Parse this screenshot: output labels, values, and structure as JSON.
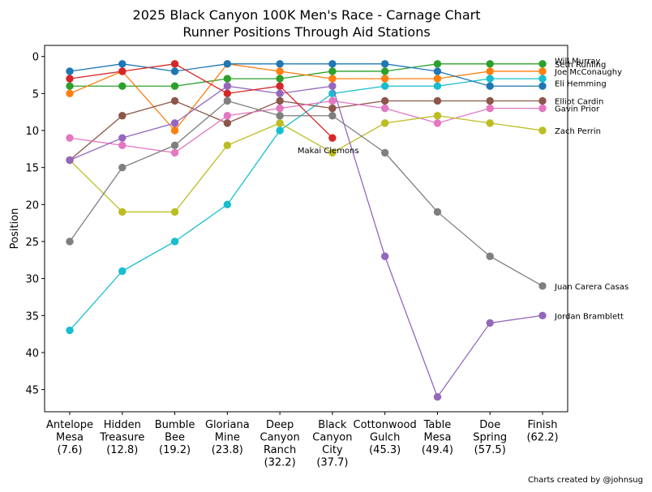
{
  "chart_data": {
    "type": "line",
    "title": "2025 Black Canyon 100K Men's Race - Carnage Chart",
    "subtitle": "Runner Positions Through Aid Stations",
    "xlabel": "",
    "ylabel": "Position",
    "ylim": [
      48,
      -1.5
    ],
    "yticks": [
      0,
      5,
      10,
      15,
      20,
      25,
      30,
      35,
      40,
      45
    ],
    "categories": [
      "Antelope Mesa (7.6)",
      "Hidden Treasure (12.8)",
      "Bumble Bee (19.2)",
      "Gloriana Mine (23.8)",
      "Deep Canyon Ranch (32.2)",
      "Black Canyon City (37.7)",
      "Cottonwood Gulch (45.3)",
      "Table Mesa (49.4)",
      "Doe Spring (57.5)",
      "Finish (62.2)"
    ],
    "category_lines": [
      [
        "Antelope",
        "Mesa",
        "(7.6)"
      ],
      [
        "Hidden",
        "Treasure",
        "(12.8)"
      ],
      [
        "Bumble",
        "Bee",
        "(19.2)"
      ],
      [
        "Gloriana",
        "Mine",
        "(23.8)"
      ],
      [
        "Deep",
        "Canyon",
        "Ranch",
        "(32.2)"
      ],
      [
        "Black",
        "Canyon",
        "City",
        "(37.7)"
      ],
      [
        "Cottonwood",
        "Gulch",
        "(45.3)"
      ],
      [
        "Table",
        "Mesa",
        "(49.4)"
      ],
      [
        "Doe",
        "Spring",
        "(57.5)"
      ],
      [
        "Finish",
        "(62.2)"
      ]
    ],
    "series": [
      {
        "name": "Seth Ruhling",
        "color": "#2ca02c",
        "values": [
          4,
          4,
          4,
          3,
          3,
          2,
          2,
          1,
          1,
          1
        ]
      },
      {
        "name": "Will Murray",
        "color": "#ff7f0e",
        "values": [
          5,
          2,
          10,
          1,
          2,
          3,
          3,
          3,
          2,
          2
        ]
      },
      {
        "name": "Joe McConaughy",
        "color": "#17becf",
        "values": [
          37,
          29,
          25,
          20,
          10,
          5,
          4,
          4,
          3,
          3
        ]
      },
      {
        "name": "Eli Hemming",
        "color": "#1f77b4",
        "values": [
          2,
          1,
          2,
          1,
          1,
          1,
          1,
          2,
          4,
          4
        ]
      },
      {
        "name": "Elliot Cardin",
        "color": "#8c564b",
        "values": [
          14,
          8,
          6,
          9,
          6,
          7,
          6,
          6,
          6,
          6
        ]
      },
      {
        "name": "Gavin Prior",
        "color": "#e377c2",
        "values": [
          11,
          12,
          13,
          8,
          7,
          6,
          7,
          9,
          7,
          7
        ]
      },
      {
        "name": "Zach Perrin",
        "color": "#bcbd22",
        "values": [
          14,
          21,
          21,
          12,
          9,
          13,
          9,
          8,
          9,
          10
        ]
      },
      {
        "name": "Juan Carera Casas",
        "color": "#7f7f7f",
        "values": [
          25,
          15,
          12,
          6,
          8,
          8,
          13,
          21,
          27,
          31
        ]
      },
      {
        "name": "Jordan Bramblett",
        "color": "#9467bd",
        "values": [
          14,
          11,
          9,
          4,
          5,
          4,
          27,
          46,
          36,
          35
        ]
      },
      {
        "name": "Makai Clemons",
        "color": "#d62728",
        "values": [
          3,
          2,
          1,
          5,
          4,
          11,
          null,
          null,
          null,
          null
        ]
      }
    ],
    "labels": [
      {
        "text": "Seth Ruhling",
        "series": "Seth Ruhling"
      },
      {
        "text": "Will Murray",
        "series": "Will Murray"
      },
      {
        "text": "Joe McConaughy",
        "series": "Joe McConaughy"
      },
      {
        "text": "Eli Hemming",
        "series": "Eli Hemming"
      },
      {
        "text": "Elliot Cardin",
        "series": "Elliot Cardin"
      },
      {
        "text": "Gavin Prior",
        "series": "Gavin Prior"
      },
      {
        "text": "Zach Perrin",
        "series": "Zach Perrin"
      },
      {
        "text": "Juan Carera Casas",
        "series": "Juan Carera Casas"
      },
      {
        "text": "Jordan Bramblett",
        "series": "Jordan Bramblett"
      },
      {
        "text": "Makai Clemons",
        "series": "Makai Clemons"
      }
    ],
    "credit": "Charts created by @johnsug"
  }
}
